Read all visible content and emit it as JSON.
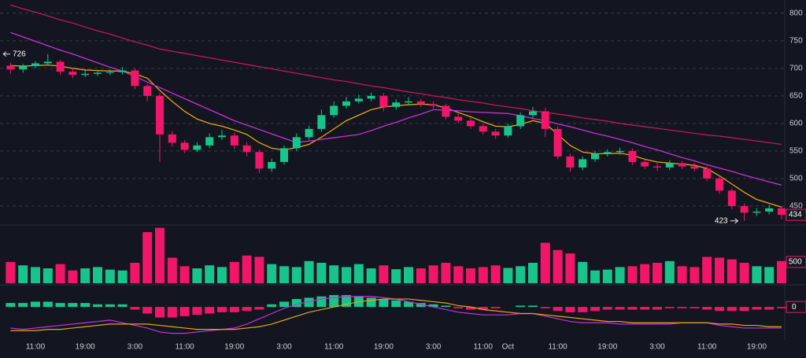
{
  "chart_data": {
    "type": "candlestick",
    "up_color": "#19c48c",
    "down_color": "#f2166a",
    "x_ticks": [
      {
        "value": 2,
        "label": "11:00"
      },
      {
        "value": 6,
        "label": "19:00"
      },
      {
        "value": 10,
        "label": "3:00"
      },
      {
        "value": 14,
        "label": "11:00"
      },
      {
        "value": 18,
        "label": "19:00"
      },
      {
        "value": 22,
        "label": "3:00"
      },
      {
        "value": 26,
        "label": "11:00"
      },
      {
        "value": 30,
        "label": "19:00"
      },
      {
        "value": 34,
        "label": "3:00"
      },
      {
        "value": 38,
        "label": "11:00"
      },
      {
        "value": 40,
        "label": "Oct"
      },
      {
        "value": 44,
        "label": "11:00"
      },
      {
        "value": 48,
        "label": "19:00"
      },
      {
        "value": 52,
        "label": "3:00"
      },
      {
        "value": 56,
        "label": "11:00"
      },
      {
        "value": 60,
        "label": "19:00"
      }
    ],
    "candles": {
      "open": [
        705,
        698,
        704,
        709,
        712,
        694,
        688,
        690,
        692,
        693,
        696,
        668,
        650,
        580,
        565,
        552,
        560,
        575,
        578,
        560,
        548,
        518,
        530,
        555,
        575,
        590,
        615,
        632,
        640,
        645,
        650,
        630,
        638,
        640,
        635,
        632,
        612,
        605,
        595,
        585,
        578,
        595,
        615,
        622,
        590,
        540,
        520,
        535,
        545,
        548,
        550,
        530,
        522,
        520,
        528,
        522,
        518,
        500,
        478,
        450,
        438,
        440,
        446
      ],
      "high": [
        710,
        708,
        713,
        726,
        715,
        700,
        696,
        697,
        698,
        702,
        700,
        672,
        655,
        586,
        570,
        566,
        582,
        588,
        583,
        566,
        552,
        536,
        560,
        582,
        596,
        625,
        640,
        648,
        652,
        656,
        655,
        644,
        648,
        645,
        640,
        636,
        618,
        610,
        600,
        590,
        600,
        620,
        630,
        628,
        595,
        545,
        540,
        550,
        553,
        556,
        555,
        535,
        528,
        533,
        532,
        528,
        522,
        505,
        482,
        455,
        446,
        452,
        450
      ],
      "low": [
        690,
        692,
        700,
        705,
        688,
        682,
        684,
        686,
        688,
        689,
        662,
        640,
        530,
        558,
        546,
        548,
        555,
        570,
        554,
        540,
        510,
        512,
        525,
        550,
        570,
        585,
        610,
        627,
        636,
        640,
        622,
        625,
        633,
        630,
        627,
        607,
        600,
        590,
        580,
        572,
        574,
        590,
        610,
        575,
        535,
        512,
        515,
        530,
        540,
        543,
        524,
        517,
        514,
        515,
        517,
        513,
        495,
        472,
        444,
        423,
        432,
        435,
        426
      ],
      "close": [
        698,
        704,
        709,
        712,
        694,
        688,
        690,
        692,
        693,
        696,
        668,
        650,
        580,
        565,
        552,
        560,
        575,
        578,
        560,
        548,
        518,
        530,
        555,
        575,
        590,
        615,
        632,
        640,
        645,
        650,
        630,
        638,
        640,
        635,
        632,
        612,
        605,
        595,
        585,
        578,
        595,
        615,
        622,
        590,
        540,
        520,
        535,
        545,
        548,
        550,
        530,
        522,
        520,
        528,
        522,
        518,
        500,
        478,
        450,
        438,
        440,
        446,
        434
      ]
    },
    "ylim": [
      417,
      824
    ],
    "yticks": [
      450,
      500,
      550,
      600,
      650,
      700,
      750,
      800
    ],
    "grid": true,
    "moving_averages": [
      {
        "color": "#e8a317",
        "values": [
          705,
          704,
          705,
          706,
          704,
          700,
          697,
          696,
          695,
          695,
          690,
          682,
          660,
          640,
          622,
          608,
          600,
          595,
          588,
          580,
          565,
          555,
          552,
          556,
          562,
          575,
          590,
          605,
          615,
          625,
          630,
          632,
          634,
          635,
          634,
          628,
          620,
          612,
          603,
          595,
          594,
          598,
          605,
          600,
          580,
          560,
          548,
          545,
          545,
          546,
          542,
          535,
          530,
          528,
          526,
          524,
          518,
          505,
          490,
          475,
          462,
          455,
          448
        ]
      },
      {
        "color": "#c930d8",
        "values": [
          765,
          757,
          749,
          741,
          733,
          726,
          718,
          710,
          702,
          695,
          685,
          675,
          665,
          655,
          645,
          635,
          625,
          615,
          605,
          597,
          589,
          581,
          573,
          565,
          568,
          571,
          574,
          577,
          580,
          587,
          595,
          602,
          610,
          617,
          625,
          624,
          623,
          621,
          620,
          619,
          618,
          614,
          609,
          605,
          599,
          594,
          588,
          582,
          577,
          571,
          565,
          558,
          552,
          545,
          538,
          532,
          525,
          519,
          513,
          506,
          500,
          494,
          488
        ]
      },
      {
        "color": "#c2185b",
        "values": [
          815,
          808,
          802,
          795,
          788,
          782,
          775,
          768,
          762,
          755,
          748,
          742,
          735,
          731,
          727,
          723,
          719,
          715,
          711,
          707,
          703,
          699,
          695,
          691,
          687,
          683,
          679,
          676,
          672,
          668,
          665,
          661,
          657,
          654,
          650,
          647,
          643,
          640,
          637,
          633,
          630,
          627,
          623,
          620,
          617,
          614,
          610,
          607,
          604,
          600,
          597,
          594,
          591,
          588,
          585,
          582,
          579,
          577,
          574,
          571,
          568,
          565,
          562
        ]
      }
    ],
    "volume": {
      "values": [
        500,
        420,
        380,
        350,
        450,
        300,
        350,
        380,
        320,
        300,
        480,
        1200,
        1300,
        600,
        400,
        350,
        420,
        380,
        500,
        650,
        620,
        450,
        400,
        380,
        520,
        480,
        420,
        380,
        450,
        350,
        420,
        330,
        380,
        350,
        420,
        480,
        400,
        350,
        380,
        420,
        360,
        400,
        480,
        950,
        780,
        700,
        500,
        300,
        320,
        380,
        400,
        450,
        480,
        520,
        400,
        380,
        620,
        600,
        560,
        480,
        400,
        380,
        520
      ],
      "ylim": [
        0,
        1330
      ],
      "yticks": [
        500
      ]
    },
    "macd": {
      "histogram": [
        3,
        3,
        4,
        4,
        3,
        3,
        3,
        2,
        2,
        2,
        -2,
        -5,
        -8,
        -8,
        -7,
        -6,
        -5,
        -4,
        -4,
        -3,
        -2,
        2,
        4,
        6,
        7,
        8,
        9,
        9,
        8,
        7,
        6,
        5,
        4,
        3,
        2,
        1,
        -1,
        -2,
        -2,
        -1,
        0,
        1,
        1,
        -1,
        -3,
        -4,
        -4,
        -3,
        -2,
        -2,
        -2,
        -2,
        -2,
        -1,
        -1,
        -1,
        -2,
        -3,
        -3,
        -3,
        -2,
        -2,
        -1
      ],
      "macd": [
        -16,
        -17,
        -16,
        -15,
        -14,
        -13,
        -12,
        -11,
        -10,
        -12,
        -14,
        -16,
        -19,
        -20,
        -20,
        -19,
        -18,
        -17,
        -16,
        -13,
        -9,
        -5,
        -1,
        2,
        4,
        6,
        7,
        8,
        8,
        8,
        7,
        6,
        4,
        2,
        0,
        -2,
        -4,
        -5,
        -6,
        -6,
        -6,
        -5,
        -5,
        -7,
        -9,
        -11,
        -12,
        -12,
        -12,
        -13,
        -13,
        -13,
        -13,
        -13,
        -12,
        -12,
        -12,
        -14,
        -15,
        -16,
        -16,
        -16,
        -16
      ],
      "signal": [
        -18,
        -18,
        -18,
        -17,
        -17,
        -16,
        -15,
        -14,
        -13,
        -13,
        -13,
        -13,
        -14,
        -15,
        -16,
        -17,
        -17,
        -17,
        -17,
        -16,
        -15,
        -13,
        -10,
        -7,
        -4,
        -2,
        0,
        2,
        4,
        5,
        6,
        6,
        6,
        5,
        4,
        3,
        1,
        0,
        -2,
        -3,
        -4,
        -5,
        -5,
        -6,
        -7,
        -8,
        -9,
        -10,
        -11,
        -11,
        -12,
        -12,
        -12,
        -12,
        -12,
        -12,
        -12,
        -13,
        -13,
        -14,
        -14,
        -15,
        -15
      ],
      "macd_color": "#c930d8",
      "signal_color": "#e8a317",
      "ylim": [
        -25,
        15
      ],
      "yticks": [
        0
      ]
    }
  }
}
